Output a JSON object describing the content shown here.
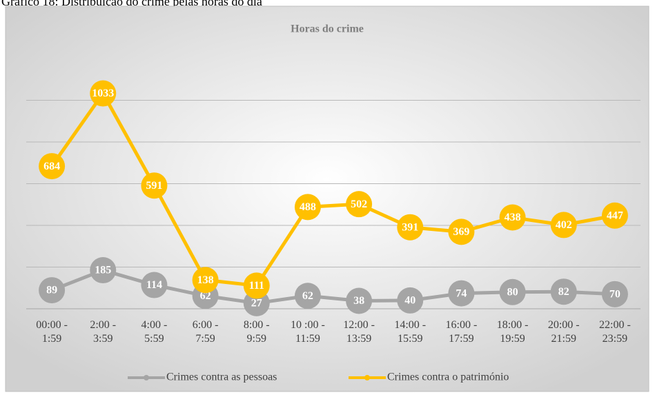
{
  "caption": "Gráfico 18: Distribuição do crime pelas horas do dia",
  "chart_data": {
    "type": "line",
    "title": "Horas do crime",
    "categories": [
      "00:00 - 1:59",
      "2:00 - 3:59",
      "4:00 - 5:59",
      "6:00 - 7:59",
      "8:00 - 9:59",
      "10 :00 - 11:59",
      "12:00 - 13:59",
      "14:00 - 15:59",
      "16:00 - 17:59",
      "18:00 - 19:59",
      "20:00 - 21:59",
      "22:00 - 23:59"
    ],
    "series": [
      {
        "name": "Crimes contra as pessoas",
        "color": "#a5a5a5",
        "values": [
          89,
          185,
          114,
          62,
          27,
          62,
          38,
          40,
          74,
          80,
          82,
          70
        ]
      },
      {
        "name": "Crimes contra o património",
        "color": "#ffc000",
        "values": [
          684,
          1033,
          591,
          138,
          111,
          488,
          502,
          391,
          369,
          438,
          402,
          447
        ]
      }
    ],
    "ylim": [
      0,
      1200
    ],
    "yticks": [
      0,
      200,
      400,
      600,
      800,
      1000
    ],
    "grid": true,
    "legend": "bottom"
  }
}
